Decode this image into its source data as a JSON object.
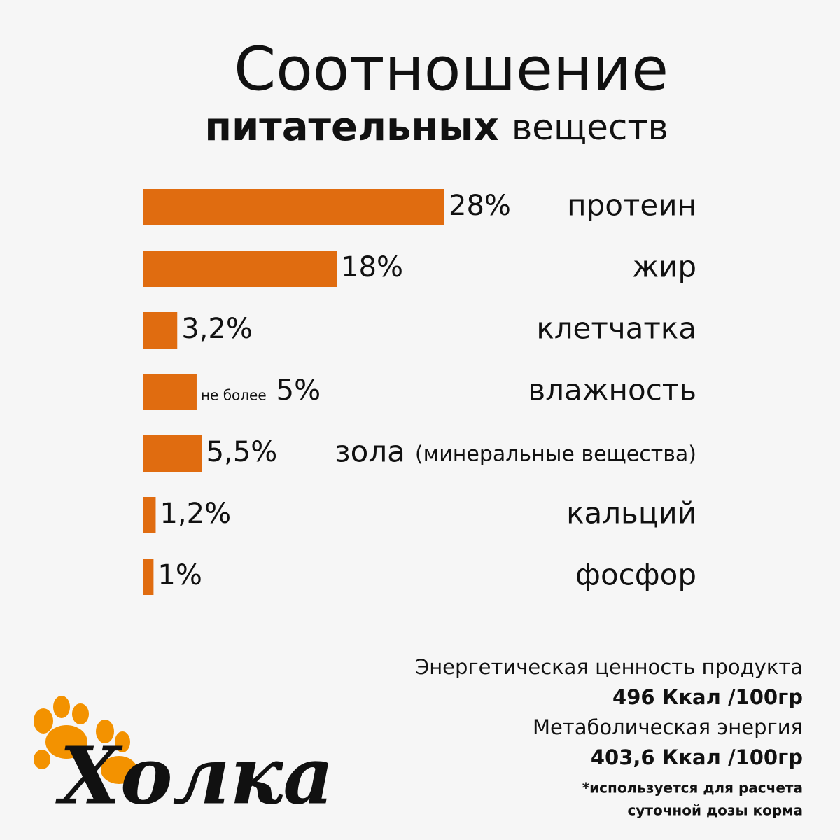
{
  "chart_data": {
    "type": "bar",
    "orientation": "horizontal",
    "title": "Соотношение",
    "subtitle_bold": "питательных",
    "subtitle": "веществ",
    "categories": [
      "протеин",
      "жир",
      "клетчатка",
      "влажность",
      "зола",
      "кальций",
      "фосфор"
    ],
    "category_notes": [
      null,
      null,
      null,
      null,
      "(минеральные вещества)",
      null,
      null
    ],
    "values": [
      28,
      18,
      3.2,
      5,
      5.5,
      1.2,
      1
    ],
    "value_labels": [
      "28%",
      "18%",
      "3,2%",
      "5%",
      "5,5%",
      "1,2%",
      "1%"
    ],
    "value_notes": [
      null,
      null,
      null,
      "не более",
      null,
      null,
      null
    ],
    "color": "#e06c10"
  },
  "footer": {
    "lines": [
      {
        "text": "Энергетическая ценность продукта",
        "bold": false
      },
      {
        "text": "496 Ккал /100гр",
        "bold": true
      },
      {
        "text": "Метаболическая энергия",
        "bold": false
      },
      {
        "text": "403,6 Ккал /100гр",
        "bold": true
      },
      {
        "text": "*используется для расчета",
        "bold": true,
        "small": true
      },
      {
        "text": "суточной дозы корма",
        "bold": true,
        "small": true
      }
    ]
  },
  "logo": "Холка"
}
